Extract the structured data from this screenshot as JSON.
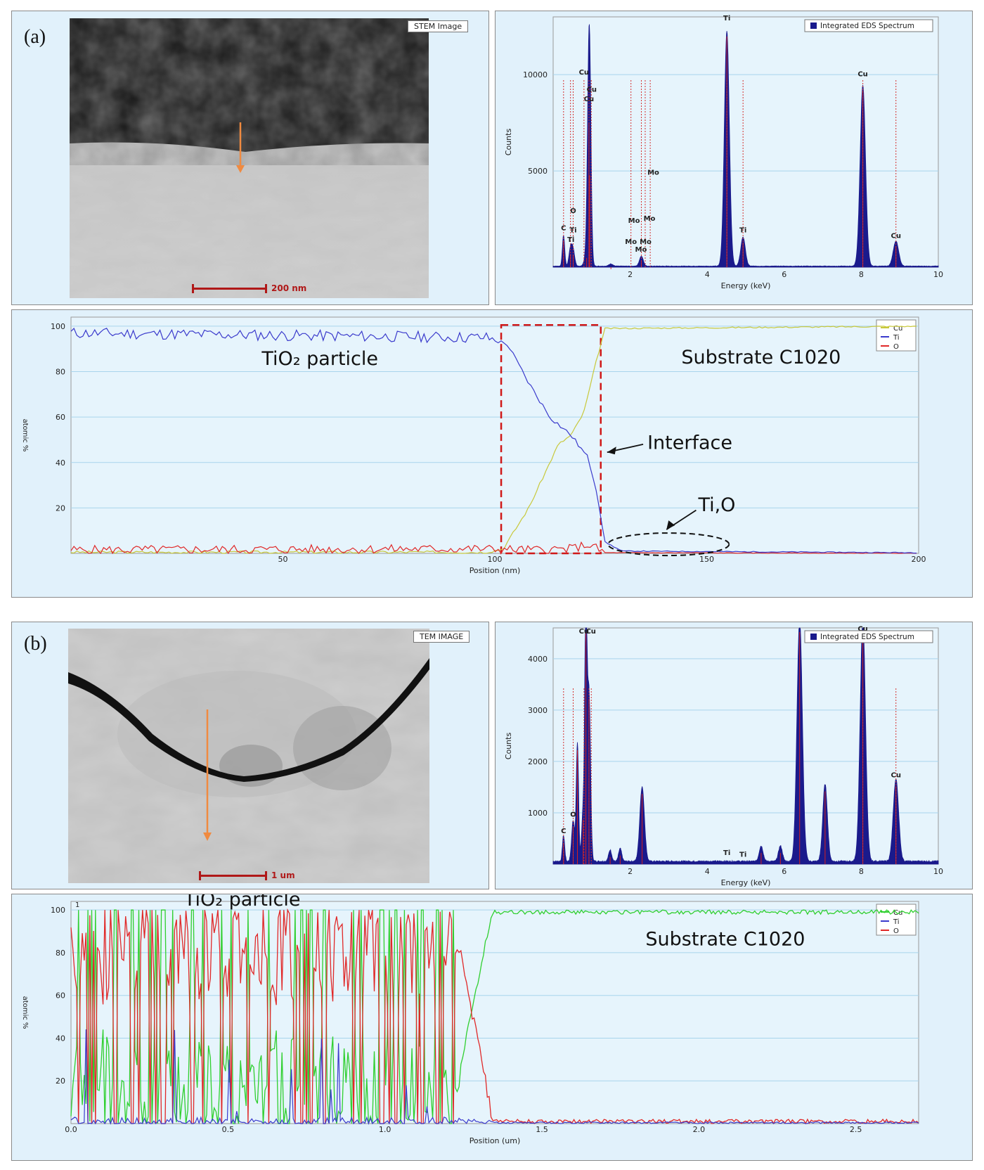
{
  "panels": {
    "a": {
      "label": "(a)",
      "image_tag": "STEM Image",
      "scale_text": "200 nm",
      "spectrum": {
        "legend": "Integrated EDS Spectrum",
        "xlabel": "Energy (keV)",
        "ylabel": "Counts",
        "xlim": [
          0,
          10
        ],
        "ylim": [
          0,
          13000
        ],
        "xticks": [
          2,
          4,
          6,
          8,
          10
        ],
        "yticks": [
          5000,
          10000
        ],
        "peaks": [
          {
            "x": 0.27,
            "h": 1600,
            "w": 0.03
          },
          {
            "x": 0.45,
            "h": 900,
            "w": 0.04
          },
          {
            "x": 0.52,
            "h": 800,
            "w": 0.04
          },
          {
            "x": 0.87,
            "h": 700,
            "w": 0.05
          },
          {
            "x": 0.93,
            "h": 7700,
            "w": 0.04
          },
          {
            "x": 0.95,
            "h": 5000,
            "w": 0.04
          },
          {
            "x": 1.5,
            "h": 120,
            "w": 0.05
          },
          {
            "x": 2.29,
            "h": 520,
            "w": 0.05
          },
          {
            "x": 4.51,
            "h": 12200,
            "w": 0.065
          },
          {
            "x": 4.93,
            "h": 1500,
            "w": 0.06
          },
          {
            "x": 8.04,
            "h": 9400,
            "w": 0.07
          },
          {
            "x": 8.9,
            "h": 1300,
            "w": 0.07
          }
        ],
        "labels": [
          {
            "t": "C",
            "x": 0.27,
            "y": 1800
          },
          {
            "t": "Ti",
            "x": 0.46,
            "y": 1200
          },
          {
            "t": "O",
            "x": 0.52,
            "y": 2700
          },
          {
            "t": "Ti",
            "x": 0.52,
            "y": 1700
          },
          {
            "t": "Cu",
            "x": 0.8,
            "y": 9900
          },
          {
            "t": "Cu",
            "x": 0.93,
            "y": 8500
          },
          {
            "t": "Cu",
            "x": 1.0,
            "y": 9000
          },
          {
            "t": "Mo",
            "x": 2.02,
            "y": 1100
          },
          {
            "t": "Mo",
            "x": 2.1,
            "y": 2200
          },
          {
            "t": "Mo",
            "x": 2.28,
            "y": 700
          },
          {
            "t": "Mo",
            "x": 2.4,
            "y": 1100
          },
          {
            "t": "Mo",
            "x": 2.5,
            "y": 2300
          },
          {
            "t": "Mo",
            "x": 2.6,
            "y": 4700
          },
          {
            "t": "Ti",
            "x": 4.51,
            "y": 12700
          },
          {
            "t": "Ti",
            "x": 4.93,
            "y": 1700
          },
          {
            "t": "Cu",
            "x": 8.04,
            "y": 9800
          },
          {
            "t": "Cu",
            "x": 8.9,
            "y": 1400
          }
        ],
        "marker_lines": [
          0.27,
          0.45,
          0.52,
          0.8,
          0.93,
          0.99,
          2.02,
          2.29,
          2.39,
          2.52,
          4.51,
          4.93,
          8.04,
          8.9
        ]
      },
      "linescan": {
        "xlabel": "Position (nm)",
        "ylabel": "atomic %",
        "xlim": [
          0,
          200
        ],
        "ylim": [
          0,
          104
        ],
        "xticks": [
          50,
          100,
          150,
          200
        ],
        "yticks": [
          20,
          40,
          60,
          80,
          100
        ],
        "legend": [
          "Cu",
          "Ti",
          "O"
        ],
        "annotations": {
          "left": "TiO₂ particle",
          "right": "Substrate C1020",
          "interface": "Interface",
          "tio": "Ti,O"
        }
      }
    },
    "b": {
      "label": "(b)",
      "image_tag": "TEM IMAGE",
      "scale_text": "1 um",
      "spectrum": {
        "legend": "Integrated EDS Spectrum",
        "xlabel": "Energy (keV)",
        "ylabel": "Counts",
        "xlim": [
          0,
          10
        ],
        "ylim": [
          0,
          4600
        ],
        "xticks": [
          2,
          4,
          6,
          8,
          10
        ],
        "yticks": [
          1000,
          2000,
          3000,
          4000
        ],
        "peaks": [
          {
            "x": 0.27,
            "h": 500,
            "w": 0.03
          },
          {
            "x": 0.52,
            "h": 800,
            "w": 0.04
          },
          {
            "x": 0.63,
            "h": 2300,
            "w": 0.03
          },
          {
            "x": 0.78,
            "h": 950,
            "w": 0.04
          },
          {
            "x": 0.85,
            "h": 4600,
            "w": 0.03
          },
          {
            "x": 0.93,
            "h": 3300,
            "w": 0.04
          },
          {
            "x": 1.48,
            "h": 220,
            "w": 0.04
          },
          {
            "x": 1.74,
            "h": 250,
            "w": 0.04
          },
          {
            "x": 2.31,
            "h": 1450,
            "w": 0.06
          },
          {
            "x": 5.4,
            "h": 300,
            "w": 0.05
          },
          {
            "x": 5.9,
            "h": 300,
            "w": 0.05
          },
          {
            "x": 6.4,
            "h": 4700,
            "w": 0.07
          },
          {
            "x": 7.06,
            "h": 1500,
            "w": 0.06
          },
          {
            "x": 8.04,
            "h": 4700,
            "w": 0.07
          },
          {
            "x": 8.9,
            "h": 1600,
            "w": 0.07
          }
        ],
        "labels": [
          {
            "t": "C",
            "x": 0.27,
            "y": 560
          },
          {
            "t": "O",
            "x": 0.52,
            "y": 880
          },
          {
            "t": "Cu",
            "x": 0.8,
            "y": 4450
          },
          {
            "t": "Cu",
            "x": 0.98,
            "y": 4450
          },
          {
            "t": "Ti",
            "x": 4.51,
            "y": 140
          },
          {
            "t": "Ti",
            "x": 4.93,
            "y": 100
          },
          {
            "t": "Cu",
            "x": 8.04,
            "y": 4500
          },
          {
            "t": "Cu",
            "x": 8.9,
            "y": 1650
          }
        ],
        "marker_lines": [
          0.27,
          0.52,
          0.8,
          0.93,
          0.99,
          8.04,
          8.9
        ]
      },
      "linescan": {
        "xlabel": "Position (um)",
        "ylabel": "atomic %",
        "xlim": [
          0,
          2.7
        ],
        "ylim": [
          0,
          104
        ],
        "xticks": [
          0.0,
          0.5,
          1.0,
          1.5,
          2.0,
          2.5
        ],
        "yticks": [
          20,
          40,
          60,
          80,
          100
        ],
        "legend": [
          "Cu",
          "Ti",
          "O"
        ],
        "corner_label": "1",
        "annotations": {
          "left": "TiO₂ particle",
          "right": "Substrate C1020"
        }
      }
    }
  },
  "colors": {
    "panel_bg": "#e1f1fb",
    "grid": "#a8d4ec",
    "spectrum_fill": "#1a1a8c",
    "spectrum_peak": "#d42020",
    "marker": "#d43030",
    "cu_a": "#c8c83a",
    "cu_b": "#2fcf2f",
    "ti": "#3a3acc",
    "o": "#e02828",
    "interface_box": "#d01818"
  },
  "chart_data": [
    {
      "type": "area",
      "title": "",
      "legend": "Integrated EDS Spectrum",
      "xlabel": "Energy (keV)",
      "ylabel": "Counts",
      "xlim": [
        0,
        10
      ],
      "ylim": [
        0,
        13000
      ],
      "series": [
        {
          "name": "Integrated EDS Spectrum",
          "x": [
            0.27,
            0.45,
            0.52,
            0.93,
            0.95,
            2.29,
            4.51,
            4.93,
            8.04,
            8.9
          ],
          "y": [
            1600,
            900,
            800,
            7700,
            5000,
            520,
            12200,
            1500,
            9400,
            1300
          ]
        }
      ]
    },
    {
      "type": "line",
      "title": "",
      "xlabel": "Position (nm)",
      "ylabel": "atomic %",
      "xlim": [
        0,
        200
      ],
      "ylim": [
        0,
        104
      ],
      "x": [
        0,
        50,
        100,
        105,
        110,
        115,
        120,
        125,
        130,
        150,
        200
      ],
      "series": [
        {
          "name": "Cu",
          "values": [
            0.5,
            0.5,
            1,
            10,
            35,
            50,
            68,
            96,
            99.5,
            100,
            100
          ]
        },
        {
          "name": "Ti",
          "values": [
            97,
            97,
            95,
            90,
            70,
            51,
            40,
            5,
            1,
            0.5,
            0.3
          ]
        },
        {
          "name": "O",
          "values": [
            1.5,
            2,
            2,
            1.5,
            1.5,
            2,
            3,
            0.5,
            0,
            0,
            0
          ]
        }
      ]
    },
    {
      "type": "area",
      "title": "",
      "legend": "Integrated EDS Spectrum",
      "xlabel": "Energy (keV)",
      "ylabel": "Counts",
      "xlim": [
        0,
        10
      ],
      "ylim": [
        0,
        4600
      ],
      "series": [
        {
          "name": "Integrated EDS Spectrum",
          "x": [
            0.27,
            0.52,
            0.63,
            0.85,
            0.93,
            2.31,
            6.4,
            7.06,
            8.04,
            8.9
          ],
          "y": [
            500,
            800,
            2300,
            4600,
            3300,
            1450,
            4700,
            1500,
            4700,
            1600
          ]
        }
      ]
    },
    {
      "type": "line",
      "title": "",
      "xlabel": "Position (um)",
      "ylabel": "atomic %",
      "xlim": [
        0,
        2.7
      ],
      "ylim": [
        0,
        104
      ],
      "x": [
        0,
        0.25,
        0.5,
        0.75,
        1.0,
        1.25,
        1.3,
        1.35,
        1.5,
        2.0,
        2.5,
        2.7
      ],
      "series": [
        {
          "name": "Cu",
          "values": [
            5,
            20,
            40,
            60,
            30,
            40,
            70,
            96,
            100,
            99,
            100,
            100
          ]
        },
        {
          "name": "Ti",
          "values": [
            2,
            0,
            0,
            5,
            2,
            5,
            0,
            0,
            0,
            0,
            0,
            0
          ]
        },
        {
          "name": "O",
          "values": [
            95,
            80,
            60,
            40,
            68,
            55,
            20,
            3,
            0,
            0,
            0,
            0
          ]
        }
      ]
    }
  ]
}
